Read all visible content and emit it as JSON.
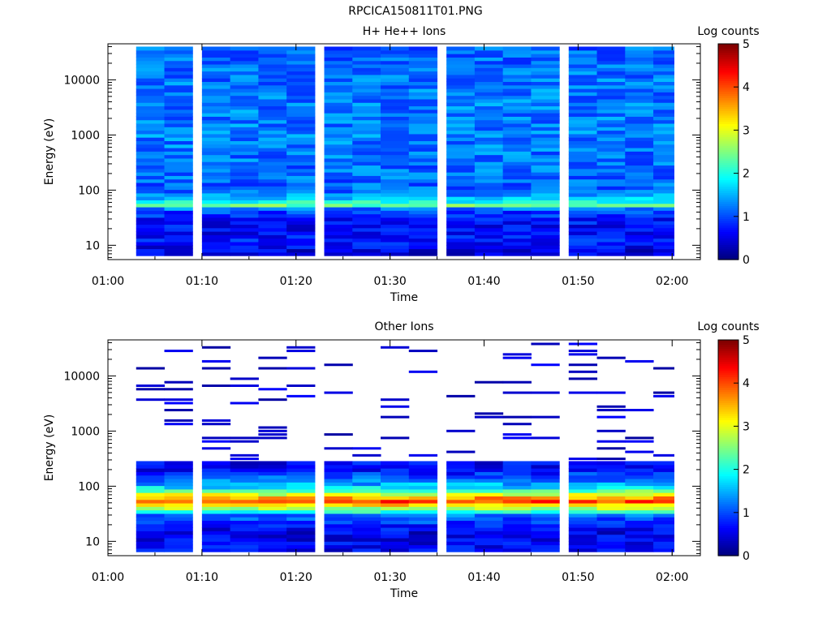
{
  "figure_title": "RPCICA150811T01.PNG",
  "chart_data": [
    {
      "type": "heatmap",
      "title": "H+ He++ Ions",
      "xlabel": "Time",
      "ylabel": "Energy (eV)",
      "x_ticks": [
        "01:00",
        "01:10",
        "01:20",
        "01:30",
        "01:40",
        "01:50",
        "02:00"
      ],
      "x_range": [
        "01:00",
        "02:03"
      ],
      "y_ticks": [
        "10",
        "100",
        "1000",
        "10000"
      ],
      "y_range": [
        5.5,
        45000
      ],
      "y_scale": "log",
      "colorbar": {
        "label": "Log counts",
        "ticks": [
          "0",
          "1",
          "2",
          "3",
          "4",
          "5"
        ],
        "range": [
          0,
          5
        ],
        "colormap": "jet"
      },
      "time_bins": [
        "01:03",
        "01:06",
        "01:10",
        "01:13",
        "01:16",
        "01:19",
        "01:23",
        "01:26",
        "01:29",
        "01:32",
        "01:36",
        "01:39",
        "01:42",
        "01:45",
        "01:49",
        "01:52",
        "01:55",
        "01:58"
      ],
      "energy_profile": [
        {
          "energy_ev": 8,
          "log_counts": 0.5
        },
        {
          "energy_ev": 12,
          "log_counts": 0.7
        },
        {
          "energy_ev": 18,
          "log_counts": 0.6
        },
        {
          "energy_ev": 30,
          "log_counts": 0.7
        },
        {
          "energy_ev": 45,
          "log_counts": 1.0
        },
        {
          "energy_ev": 55,
          "log_counts": 2.6
        },
        {
          "energy_ev": 65,
          "log_counts": 1.7
        },
        {
          "energy_ev": 100,
          "log_counts": 1.1
        },
        {
          "energy_ev": 1000,
          "log_counts": 1.25
        },
        {
          "energy_ev": 10000,
          "log_counts": 1.2
        },
        {
          "energy_ev": 40000,
          "log_counts": 1.1
        }
      ],
      "notes": "Bright band (log counts ~3) near 50-60 eV; background ~1 at higher energies"
    },
    {
      "type": "heatmap",
      "title": "Other Ions",
      "xlabel": "Time",
      "ylabel": "Energy (eV)",
      "x_ticks": [
        "01:00",
        "01:10",
        "01:20",
        "01:30",
        "01:40",
        "01:50",
        "02:00"
      ],
      "x_range": [
        "01:00",
        "02:03"
      ],
      "y_ticks": [
        "10",
        "100",
        "1000",
        "10000"
      ],
      "y_range": [
        5.5,
        45000
      ],
      "y_scale": "log",
      "colorbar": {
        "label": "Log counts",
        "ticks": [
          "0",
          "1",
          "2",
          "3",
          "4",
          "5"
        ],
        "range": [
          0,
          5
        ],
        "colormap": "jet"
      },
      "time_bins": [
        "01:03",
        "01:06",
        "01:10",
        "01:13",
        "01:16",
        "01:19",
        "01:23",
        "01:26",
        "01:29",
        "01:32",
        "01:36",
        "01:39",
        "01:42",
        "01:45",
        "01:49",
        "01:52",
        "01:55",
        "01:58"
      ],
      "energy_profile": [
        {
          "energy_ev": 8,
          "log_counts": 0.6
        },
        {
          "energy_ev": 15,
          "log_counts": 0.5
        },
        {
          "energy_ev": 30,
          "log_counts": 1.2
        },
        {
          "energy_ev": 45,
          "log_counts": 3.3
        },
        {
          "energy_ev": 55,
          "log_counts": 4.2
        },
        {
          "energy_ev": 70,
          "log_counts": 3.0
        },
        {
          "energy_ev": 100,
          "log_counts": 1.6
        },
        {
          "energy_ev": 200,
          "log_counts": 0.6
        }
      ],
      "sparse_counts_above_ev": 300,
      "notes": "Strong band (log counts ~4) near 50-60 eV; sparse dark-blue counts at high energies"
    }
  ]
}
